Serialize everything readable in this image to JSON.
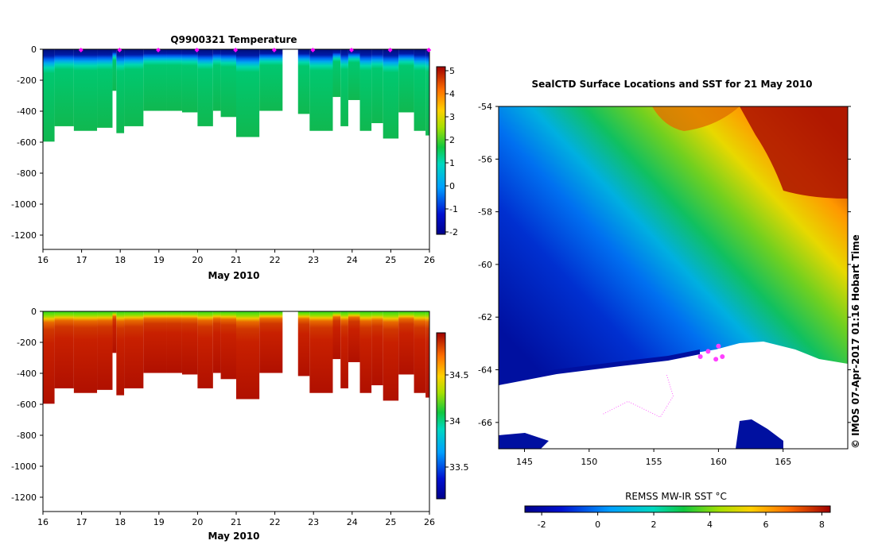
{
  "chart_data": [
    {
      "type": "heatmap",
      "title": "Q9900321  Temperature",
      "xlabel": "May 2010",
      "xticks": [
        "16",
        "17",
        "18",
        "19",
        "20",
        "21",
        "22",
        "23",
        "24",
        "25",
        "26"
      ],
      "xlim": [
        16,
        26
      ],
      "ylim": [
        -1300,
        0
      ],
      "yticks": [
        "0",
        "-200",
        "-400",
        "-600",
        "-800",
        "-1000",
        "-1200"
      ],
      "colorbar": {
        "ticks": [
          "5",
          "4",
          "3",
          "2",
          "1",
          "0",
          "-1",
          "-2"
        ],
        "range": [
          -2,
          5
        ]
      },
      "surface_markers_x": [
        17,
        18,
        19,
        20,
        21,
        22,
        23,
        24,
        25,
        26
      ],
      "profile_max_depths": [
        {
          "x": 16.0,
          "depth": 600
        },
        {
          "x": 16.3,
          "depth": 500
        },
        {
          "x": 16.8,
          "depth": 530
        },
        {
          "x": 17.4,
          "depth": 510
        },
        {
          "x": 17.8,
          "depth": 270
        },
        {
          "x": 17.9,
          "depth": 545
        },
        {
          "x": 18.1,
          "depth": 500
        },
        {
          "x": 18.6,
          "depth": 400
        },
        {
          "x": 19.2,
          "depth": 400
        },
        {
          "x": 19.6,
          "depth": 410
        },
        {
          "x": 20.0,
          "depth": 500
        },
        {
          "x": 20.4,
          "depth": 400
        },
        {
          "x": 20.6,
          "depth": 440
        },
        {
          "x": 21.0,
          "depth": 570
        },
        {
          "x": 21.6,
          "depth": 400
        },
        {
          "x": 22.2,
          "depth": 0
        },
        {
          "x": 22.6,
          "depth": 420
        },
        {
          "x": 22.9,
          "depth": 530
        },
        {
          "x": 23.5,
          "depth": 310
        },
        {
          "x": 23.7,
          "depth": 500
        },
        {
          "x": 23.9,
          "depth": 330
        },
        {
          "x": 24.2,
          "depth": 530
        },
        {
          "x": 24.5,
          "depth": 480
        },
        {
          "x": 24.8,
          "depth": 580
        },
        {
          "x": 25.2,
          "depth": 410
        },
        {
          "x": 25.6,
          "depth": 530
        },
        {
          "x": 25.9,
          "depth": 560
        }
      ]
    },
    {
      "type": "heatmap",
      "title": "",
      "xlabel": "May 2010",
      "xticks": [
        "16",
        "17",
        "18",
        "19",
        "20",
        "21",
        "22",
        "23",
        "24",
        "25",
        "26"
      ],
      "xlim": [
        16,
        26
      ],
      "ylim": [
        -1300,
        0
      ],
      "yticks": [
        "0",
        "-200",
        "-400",
        "-600",
        "-800",
        "-1000",
        "-1200"
      ],
      "colorbar": {
        "ticks": [
          "34.5",
          "34",
          "33.5"
        ],
        "range": [
          33.1,
          34.9
        ]
      }
    },
    {
      "type": "heatmap",
      "title": "SealCTD Surface Locations and SST for 21 May 2010",
      "xticks": [
        "145",
        "150",
        "155",
        "160",
        "165"
      ],
      "xlim": [
        143,
        170
      ],
      "yticks": [
        "-54",
        "-56",
        "-58",
        "-60",
        "-62",
        "-64",
        "-66"
      ],
      "ylim": [
        -67.0,
        -54.0
      ],
      "colorbar": {
        "label": "REMSS MW-IR SST °C",
        "ticks": [
          "-2",
          "0",
          "2",
          "4",
          "6",
          "8"
        ],
        "range": [
          -2.6,
          8.3
        ]
      },
      "credit": "© IMOS 07-Apr-2017 01:16 Hobart Time",
      "track_points": [
        [
          160.0,
          -63.1
        ],
        [
          159.2,
          -63.3
        ],
        [
          158.6,
          -63.5
        ],
        [
          159.8,
          -63.6
        ],
        [
          160.3,
          -63.5
        ]
      ]
    }
  ]
}
